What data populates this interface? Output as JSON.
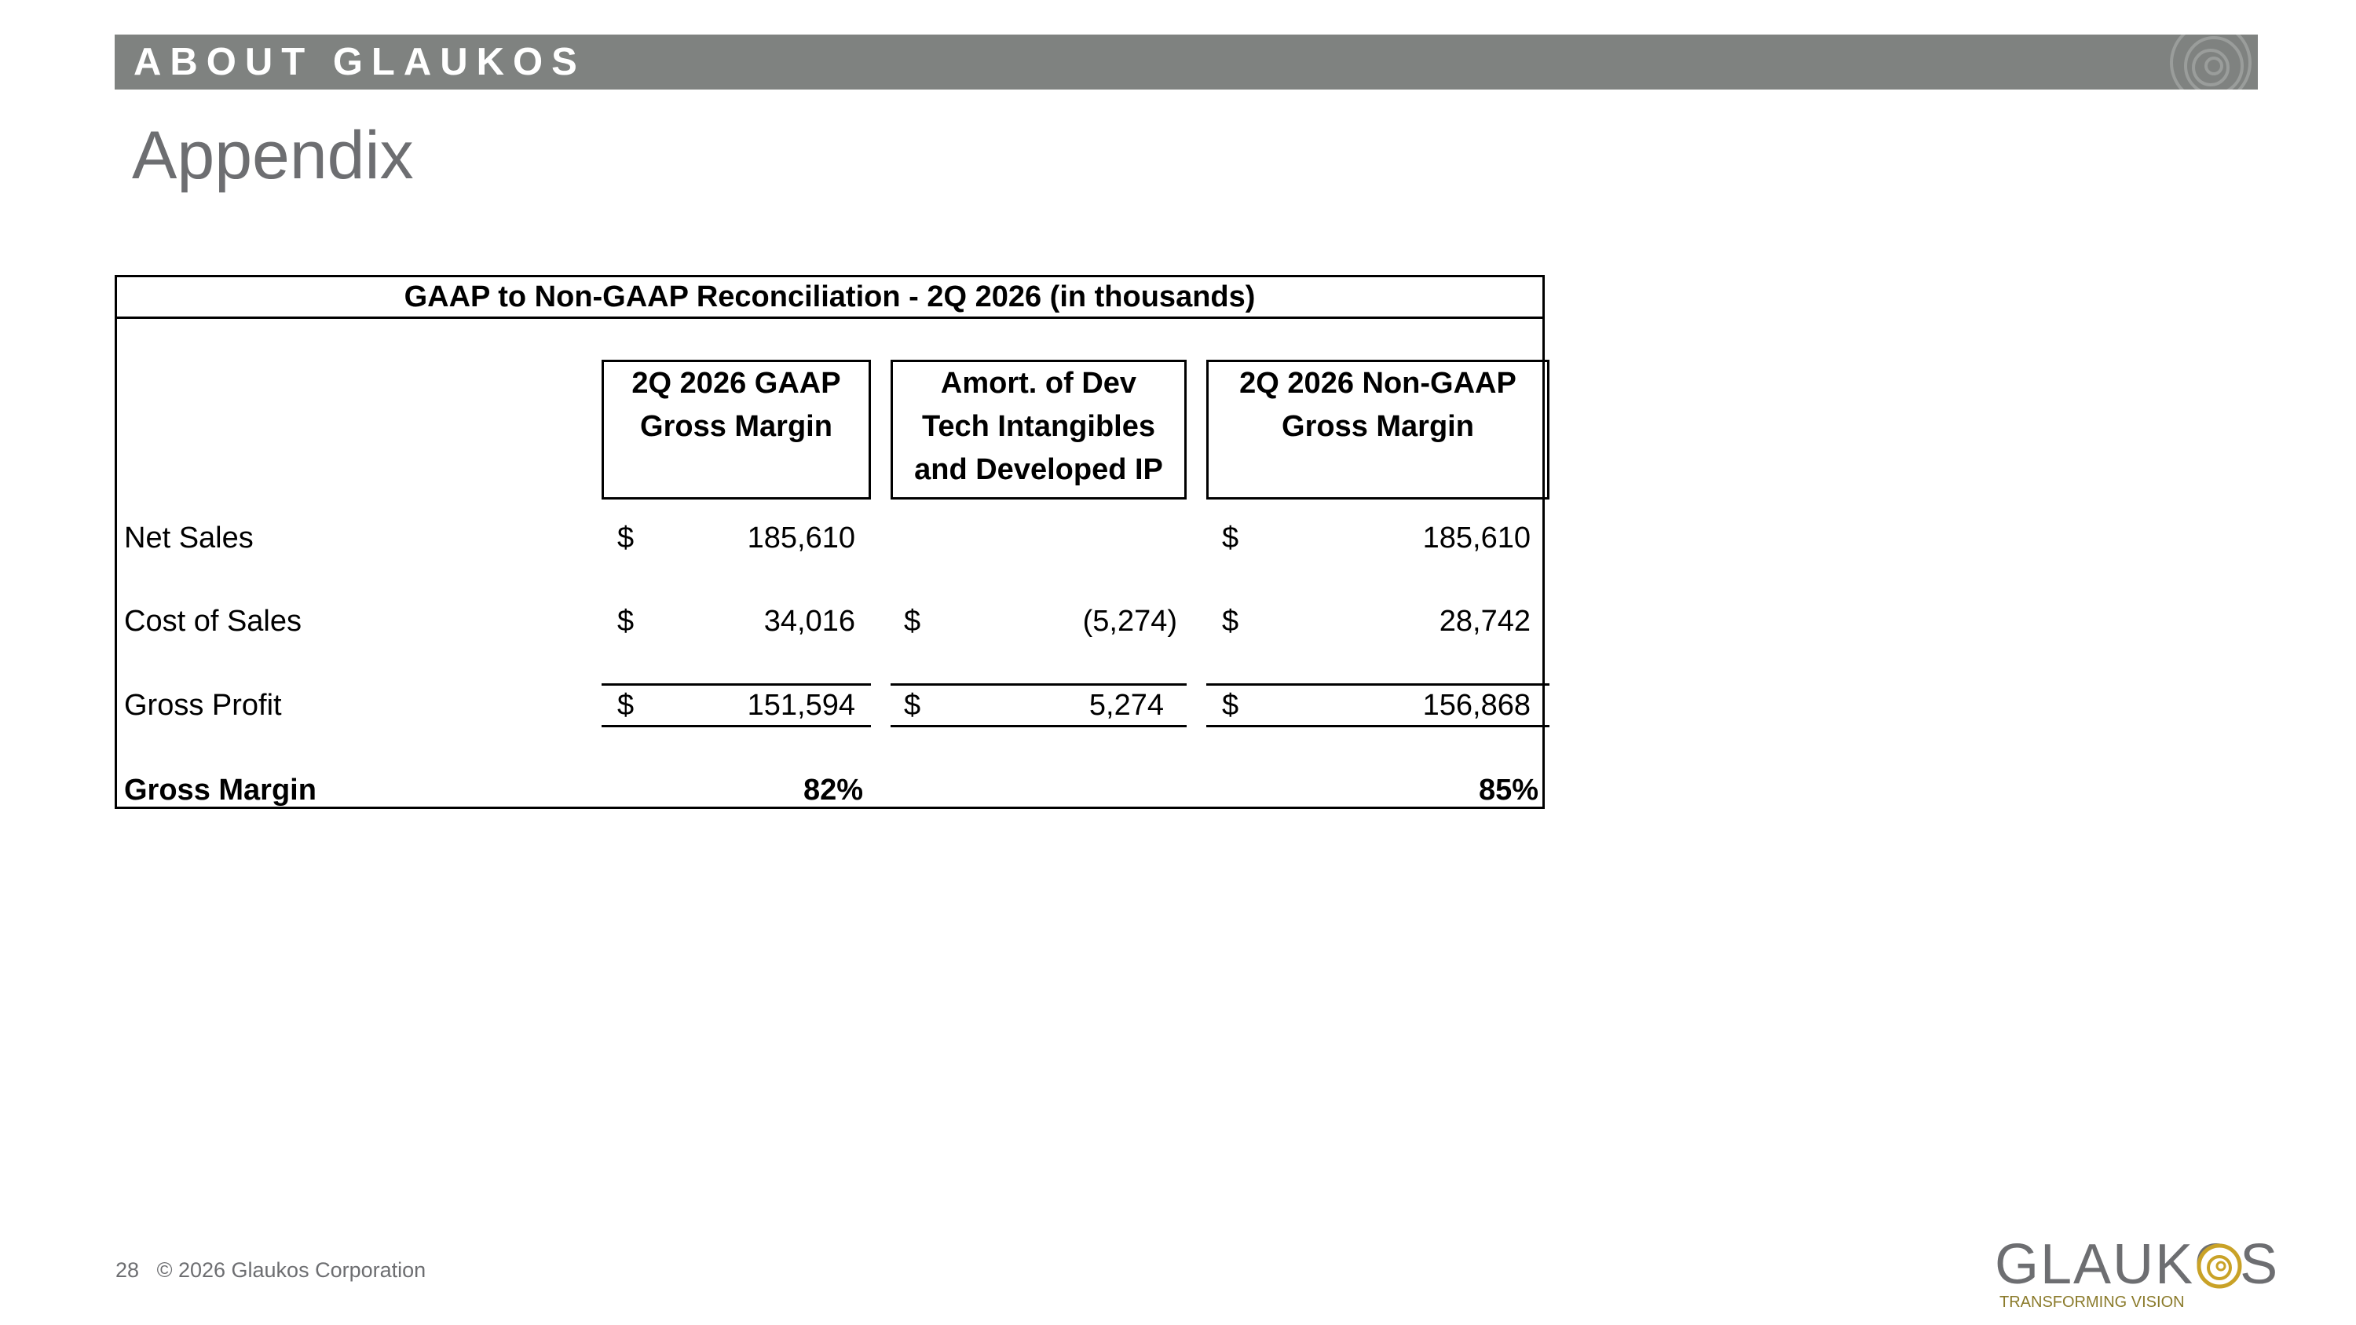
{
  "header": {
    "section_label": "ABOUT GLAUKOS"
  },
  "slide": {
    "title": "Appendix"
  },
  "table": {
    "title": "GAAP to Non-GAAP Reconciliation - 2Q 2026 (in thousands)",
    "columns": [
      {
        "lines": [
          "2Q 2026 GAAP",
          "Gross Margin"
        ]
      },
      {
        "lines": [
          "Amort. of Dev",
          "Tech Intangibles",
          "and Developed IP"
        ]
      },
      {
        "lines": [
          "2Q 2026 Non-GAAP",
          "Gross Margin"
        ]
      }
    ],
    "rows": [
      {
        "label": "Net Sales",
        "gaap_sym": "$",
        "gaap": "185,610",
        "adj_sym": "",
        "adj": "",
        "nongaap_sym": "$",
        "nongaap": "185,610"
      },
      {
        "label": "Cost of Sales",
        "gaap_sym": "$",
        "gaap": "34,016",
        "adj_sym": "$",
        "adj": "(5,274)",
        "nongaap_sym": "$",
        "nongaap": "28,742"
      },
      {
        "label": "Gross Profit",
        "gaap_sym": "$",
        "gaap": "151,594",
        "adj_sym": "$",
        "adj": "5,274",
        "nongaap_sym": "$",
        "nongaap": "156,868"
      },
      {
        "label": "Gross Margin",
        "gaap": "82%",
        "nongaap": "85%"
      }
    ]
  },
  "footer": {
    "page_number": "28",
    "copyright": "© 2026 Glaukos Corporation"
  },
  "logo": {
    "name": "GLAUKOS",
    "tagline": "TRANSFORMING VISION"
  },
  "colors": {
    "header_bar": "#7f8280",
    "title_gray": "#6d6e71",
    "logo_gold": "#c9a227"
  }
}
